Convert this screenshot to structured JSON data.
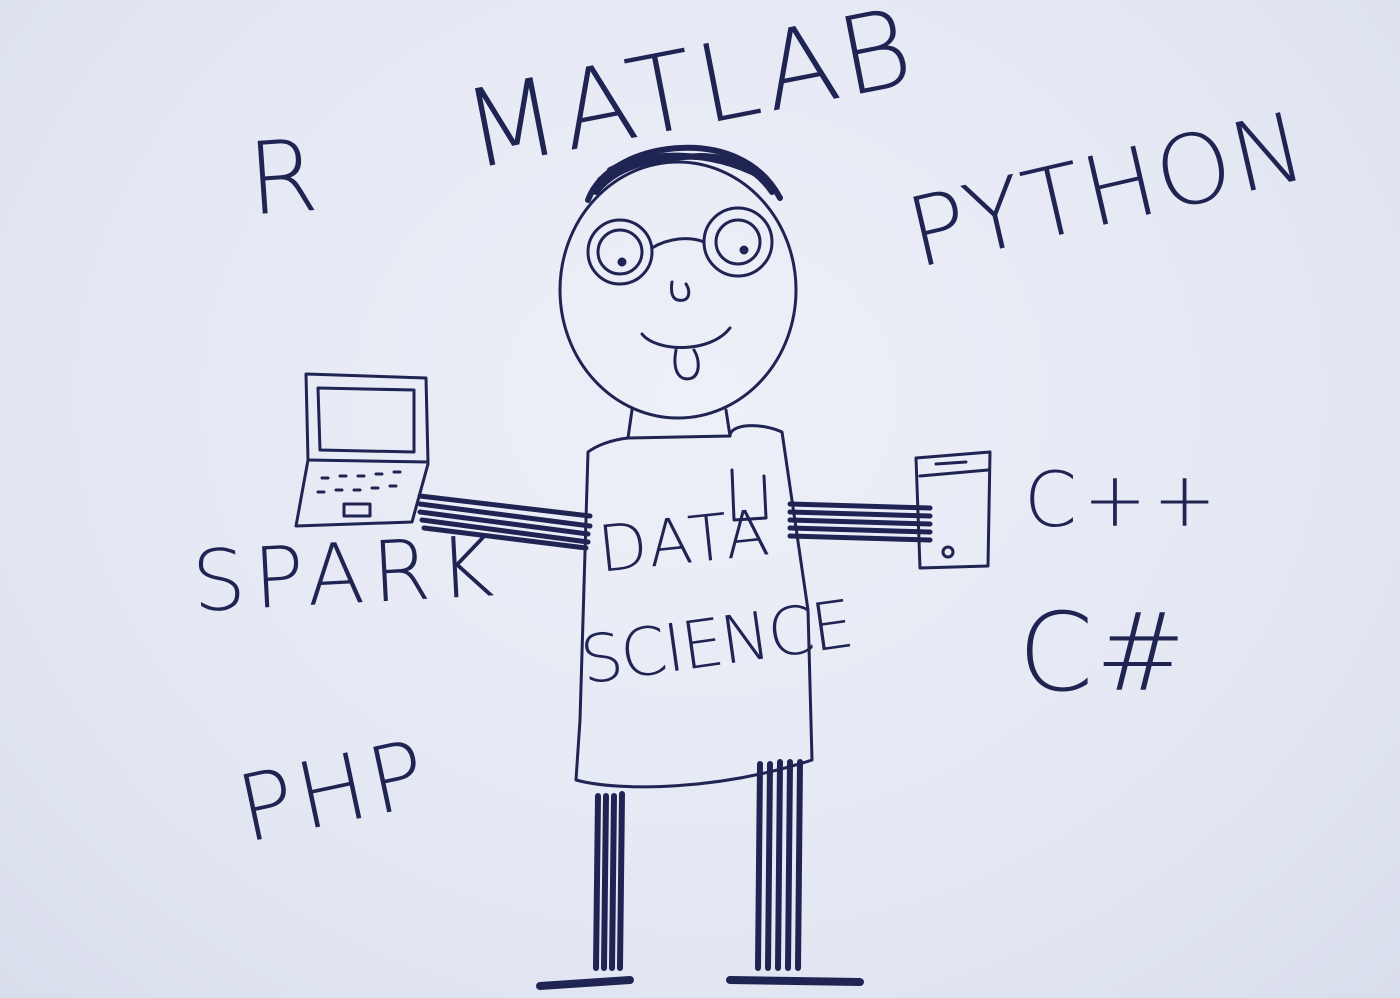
{
  "languages": {
    "r": "R",
    "matlab": "MATLAB",
    "python": "PYTHON",
    "spark": "SPARK",
    "php": "PHP",
    "cpp": "C++",
    "csharp": "C#"
  },
  "shirt": {
    "line1": "DATA",
    "line2": "SCIENCE"
  },
  "colors": {
    "ink": "#1f2453",
    "paper": "#e6e9f4"
  },
  "figures": {
    "person": "stick-figure-data-scientist",
    "left_hand_item": "laptop-icon",
    "right_hand_item": "smartphone-icon"
  }
}
